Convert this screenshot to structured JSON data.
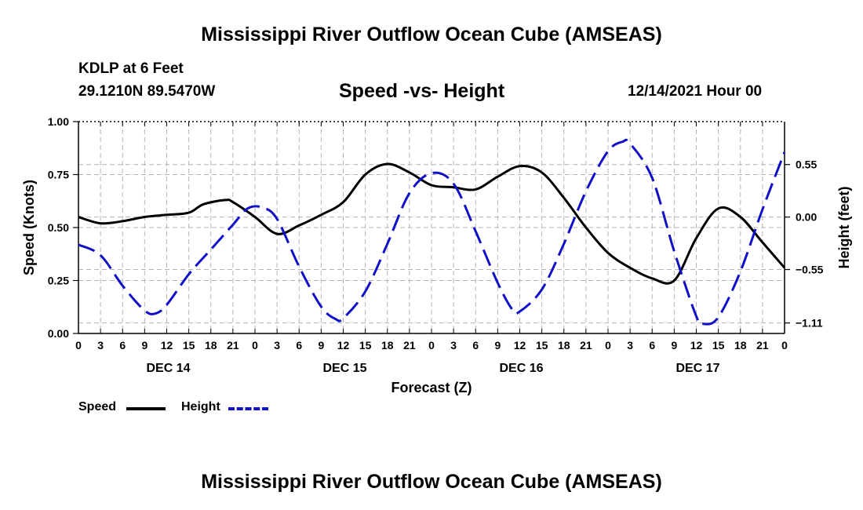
{
  "page": {
    "title": "Mississippi River Outflow Ocean Cube (AMSEAS)",
    "footer_title": "Mississippi River Outflow Ocean Cube (AMSEAS)",
    "station": "KDLP at 6 Feet",
    "coords": "29.1210N  89.5470W",
    "subtitle": "Speed -vs- Height",
    "datetime": "12/14/2021 Hour 00"
  },
  "legend": {
    "speed_label": "Speed",
    "height_label": "Height"
  },
  "colors": {
    "speed": "#000000",
    "height": "#1010c8",
    "grid": "#b4b4b4"
  },
  "chart_data": {
    "type": "line",
    "title": "Speed -vs- Height",
    "xlabel": "Forecast (Z)",
    "ylabel": "Speed (Knots)",
    "y2label": "Height (feet)",
    "xlim": [
      0,
      96
    ],
    "ylim": [
      0,
      1
    ],
    "y2lim": [
      -1.22,
      1.0
    ],
    "xticks": [
      0,
      3,
      6,
      9,
      12,
      15,
      18,
      21,
      24,
      27,
      30,
      33,
      36,
      39,
      42,
      45,
      48,
      51,
      54,
      57,
      60,
      63,
      66,
      69,
      72,
      75,
      78,
      81,
      84,
      87,
      90,
      93,
      96
    ],
    "xtick_labels": [
      "0",
      "3",
      "6",
      "9",
      "12",
      "15",
      "18",
      "21",
      "0",
      "3",
      "6",
      "9",
      "12",
      "15",
      "18",
      "21",
      "0",
      "3",
      "6",
      "9",
      "12",
      "15",
      "18",
      "21",
      "0",
      "3",
      "6",
      "9",
      "12",
      "15",
      "18",
      "21",
      "0"
    ],
    "day_labels": [
      {
        "label": "DEC 14",
        "x": 12
      },
      {
        "label": "DEC 15",
        "x": 36
      },
      {
        "label": "DEC 16",
        "x": 60
      },
      {
        "label": "DEC 17",
        "x": 84
      }
    ],
    "yticks": [
      0,
      0.25,
      0.5,
      0.75,
      1.0
    ],
    "ytick_labels": [
      "0.00",
      "0.25",
      "0.50",
      "0.75",
      "1.00"
    ],
    "y2ticks": [
      0.55,
      0,
      -0.55,
      -1.11
    ],
    "y2tick_labels": [
      "0.55",
      "0.00",
      "−0.55",
      "−1.11"
    ],
    "grid": true,
    "series": [
      {
        "name": "Speed",
        "axis": "left",
        "style": "solid",
        "x": [
          0,
          3,
          6,
          9,
          12,
          15,
          17,
          20,
          21,
          24,
          27,
          30,
          33,
          36,
          39,
          42,
          45,
          48,
          51,
          54,
          57,
          60,
          63,
          66,
          69,
          72,
          75,
          78,
          81,
          84,
          87,
          90,
          93,
          96
        ],
        "y": [
          0.55,
          0.52,
          0.53,
          0.55,
          0.56,
          0.57,
          0.61,
          0.63,
          0.62,
          0.55,
          0.47,
          0.51,
          0.56,
          0.62,
          0.75,
          0.8,
          0.76,
          0.7,
          0.69,
          0.68,
          0.74,
          0.79,
          0.76,
          0.64,
          0.5,
          0.38,
          0.31,
          0.26,
          0.25,
          0.45,
          0.59,
          0.55,
          0.43,
          0.31
        ]
      },
      {
        "name": "Height",
        "axis": "right",
        "style": "dashed",
        "x": [
          0,
          3,
          6,
          9,
          10.5,
          12,
          15,
          18,
          21,
          23,
          25,
          27,
          30,
          33,
          35,
          36,
          39,
          42,
          45,
          48,
          51,
          54,
          57,
          59,
          60,
          63,
          66,
          69,
          72,
          74,
          75,
          78,
          81,
          84,
          85,
          87,
          90,
          93,
          96
        ],
        "y": [
          -0.29,
          -0.4,
          -0.72,
          -0.98,
          -1.01,
          -0.92,
          -0.6,
          -0.34,
          -0.08,
          0.09,
          0.1,
          -0.02,
          -0.52,
          -0.94,
          -1.07,
          -1.06,
          -0.78,
          -0.28,
          0.25,
          0.46,
          0.35,
          -0.15,
          -0.69,
          -0.97,
          -0.99,
          -0.76,
          -0.28,
          0.27,
          0.69,
          0.79,
          0.77,
          0.41,
          -0.36,
          -1.04,
          -1.12,
          -1.05,
          -0.57,
          0.08,
          0.68
        ]
      }
    ]
  }
}
